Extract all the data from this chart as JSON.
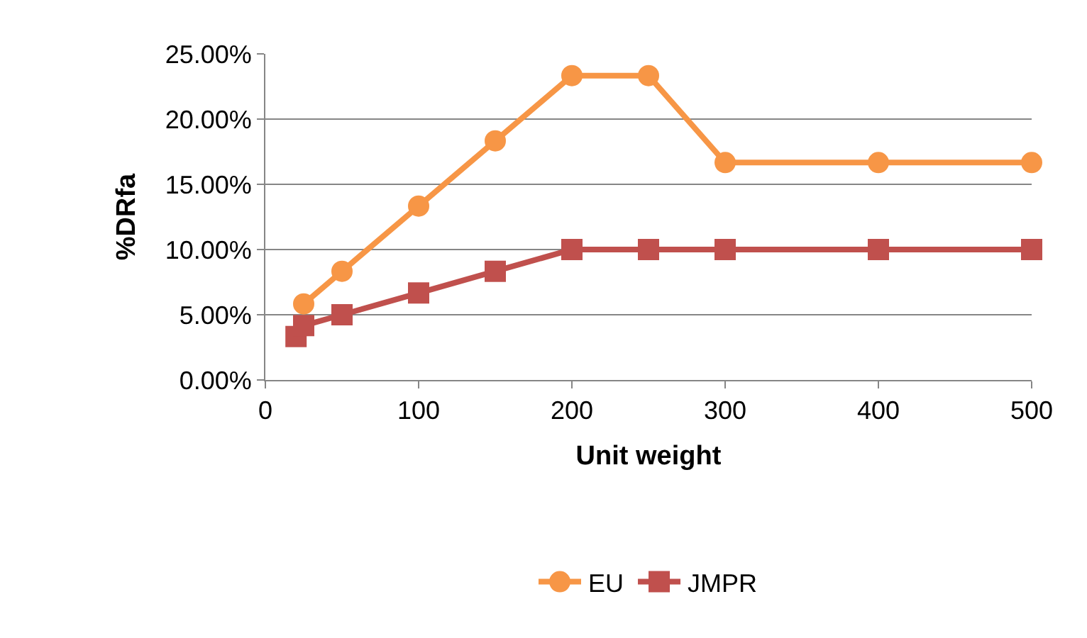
{
  "chart_data": {
    "type": "line",
    "xlabel": "Unit weight",
    "ylabel": "%DRfa",
    "xlim": [
      0,
      500
    ],
    "xticks": [
      0,
      100,
      200,
      300,
      400,
      500
    ],
    "ylim": [
      0,
      25
    ],
    "yticks": [
      {
        "value": 0,
        "label": "0.00%"
      },
      {
        "value": 5,
        "label": "5.00%"
      },
      {
        "value": 10,
        "label": "10.00%"
      },
      {
        "value": 15,
        "label": "15.00%"
      },
      {
        "value": 20,
        "label": "20.00%"
      },
      {
        "value": 25,
        "label": "25.00%"
      }
    ],
    "grid": "y",
    "legend": "bottom",
    "line_style": "solid",
    "series": [
      {
        "name": "EU",
        "color": "#f79646",
        "marker": "circle",
        "x": [
          25,
          50,
          100,
          150,
          200,
          250,
          300,
          400,
          500
        ],
        "values": [
          5.83,
          8.33,
          13.33,
          18.33,
          23.33,
          23.33,
          16.67,
          16.67,
          16.67
        ]
      },
      {
        "name": "JMPR",
        "color": "#c0504d",
        "marker": "square",
        "x": [
          20,
          25,
          50,
          100,
          150,
          200,
          250,
          300,
          400,
          500
        ],
        "values": [
          3.33,
          4.17,
          5,
          6.67,
          8.33,
          10,
          10,
          10,
          10,
          10
        ]
      }
    ]
  }
}
